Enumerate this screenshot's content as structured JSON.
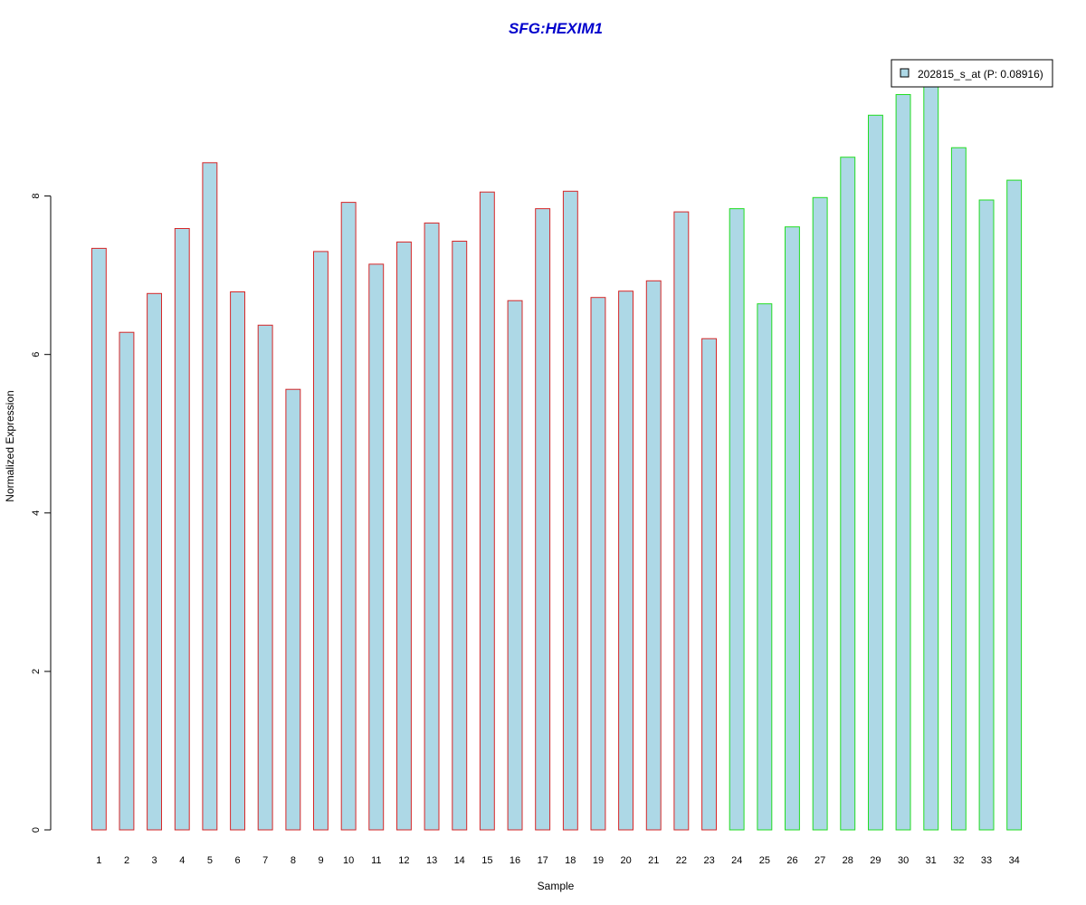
{
  "chart_data": {
    "type": "bar",
    "title": "SFG:HEXIM1",
    "xlabel": "Sample",
    "ylabel": "Normalized Expression",
    "categories": [
      "1",
      "2",
      "3",
      "4",
      "5",
      "6",
      "7",
      "8",
      "9",
      "10",
      "11",
      "12",
      "13",
      "14",
      "15",
      "16",
      "17",
      "18",
      "19",
      "20",
      "21",
      "22",
      "23",
      "24",
      "25",
      "26",
      "27",
      "28",
      "29",
      "30",
      "31",
      "32",
      "33",
      "34"
    ],
    "values": [
      7.34,
      6.28,
      6.77,
      7.59,
      8.42,
      6.79,
      6.37,
      5.56,
      7.3,
      7.92,
      7.14,
      7.42,
      7.66,
      7.43,
      8.05,
      6.68,
      7.84,
      8.06,
      6.72,
      6.8,
      6.93,
      7.8,
      6.2,
      7.84,
      6.64,
      7.61,
      7.98,
      8.49,
      9.02,
      9.28,
      9.72,
      8.61,
      7.95,
      8.2
    ],
    "groups": [
      "a",
      "a",
      "a",
      "a",
      "a",
      "a",
      "a",
      "a",
      "a",
      "a",
      "a",
      "a",
      "a",
      "a",
      "a",
      "a",
      "a",
      "a",
      "a",
      "a",
      "a",
      "a",
      "a",
      "b",
      "b",
      "b",
      "b",
      "b",
      "b",
      "b",
      "b",
      "b",
      "b",
      "b"
    ],
    "group_border_colors": {
      "a": "#d62728",
      "b": "#22dd22"
    },
    "bar_fill": "#add8e6",
    "title_color": "#0000cc",
    "yticks": [
      0,
      2,
      4,
      6,
      8
    ],
    "ylim": [
      0,
      9.8
    ],
    "grid": false,
    "legend": {
      "placement": "top-right",
      "entries": [
        {
          "label": "202815_s_at (P: 0.08916)",
          "color": "#add8e6"
        }
      ]
    }
  }
}
